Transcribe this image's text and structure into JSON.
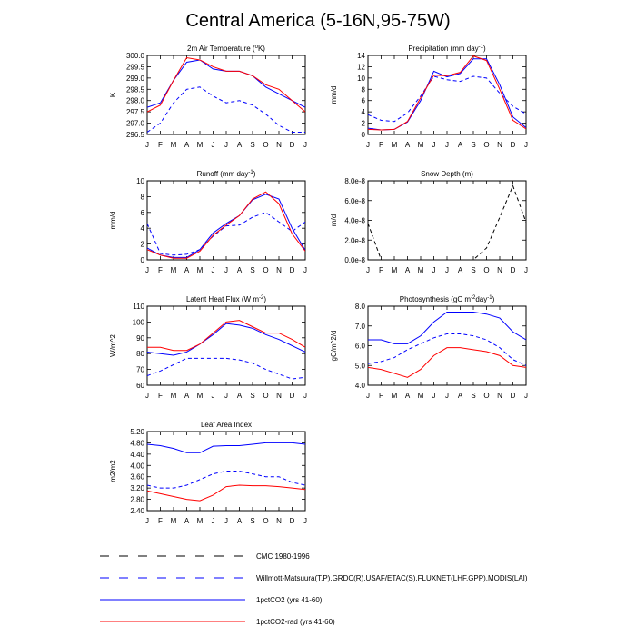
{
  "page_title": "Central America (5-16N,95-75W)",
  "months": [
    "J",
    "F",
    "M",
    "A",
    "M",
    "J",
    "J",
    "A",
    "S",
    "O",
    "N",
    "D",
    "J"
  ],
  "legend": [
    {
      "label": "CMC 1980-1996",
      "color": "#000000",
      "dash": true
    },
    {
      "label": "Willmott-Matsuura(T,P),GRDC(R),USAF/ETAC(S),FLUXNET(LHF,GPP),MODIS(LAI)",
      "color": "#0000ff",
      "dash": true
    },
    {
      "label": "1pctCO2 (yrs 41-60)",
      "color": "#0000ff",
      "dash": false
    },
    {
      "label": "1pctCO2-rad (yrs 41-60)",
      "color": "#ff0000",
      "dash": false
    }
  ],
  "chart_data": [
    {
      "type": "line",
      "title": "2m Air Temperature (",
      "title_sup": "o",
      "title_post": "K)",
      "ylabel": "K",
      "ylim": [
        296.5,
        300.0
      ],
      "yticks": [
        "296.5",
        "297.0",
        "297.5",
        "298.0",
        "298.5",
        "299.0",
        "299.5",
        "300.0"
      ],
      "series": [
        {
          "name": "Willmott-Matsuura(T,P),GRDC(R),USAF/ETAC(S),FLUXNET(LHF,GPP),MODIS(LAI)",
          "color": "#0000ff",
          "dash": true,
          "values": [
            296.6,
            297.0,
            297.9,
            298.5,
            298.6,
            298.2,
            297.9,
            298.0,
            297.8,
            297.4,
            296.9,
            296.6,
            296.6
          ]
        },
        {
          "name": "1pctCO2 (yrs 41-60)",
          "color": "#0000ff",
          "dash": false,
          "values": [
            297.7,
            297.9,
            298.9,
            299.7,
            299.8,
            299.4,
            299.3,
            299.3,
            299.1,
            298.6,
            298.3,
            298.0,
            297.7
          ]
        },
        {
          "name": "1pctCO2-rad (yrs 41-60)",
          "color": "#ff0000",
          "dash": false,
          "values": [
            297.5,
            297.8,
            298.9,
            299.9,
            299.8,
            299.5,
            299.3,
            299.3,
            299.1,
            298.7,
            298.5,
            298.0,
            297.5
          ]
        }
      ]
    },
    {
      "type": "line",
      "title": "Precipitation (mm day",
      "title_sup": "-1",
      "title_post": ")",
      "ylabel": "mm/d",
      "ylim": [
        0,
        14
      ],
      "yticks": [
        "0",
        "2",
        "4",
        "6",
        "8",
        "10",
        "12",
        "14"
      ],
      "series": [
        {
          "name": "Willmott-Matsuura(T,P),GRDC(R),USAF/ETAC(S),FLUXNET(LHF,GPP),MODIS(LAI)",
          "color": "#0000ff",
          "dash": true,
          "values": [
            3.5,
            2.5,
            2.3,
            3.8,
            6.8,
            10.3,
            9.7,
            9.4,
            10.3,
            10.0,
            7.3,
            5.0,
            3.6
          ]
        },
        {
          "name": "1pctCO2 (yrs 41-60)",
          "color": "#0000ff",
          "dash": false,
          "values": [
            1.1,
            0.8,
            0.9,
            2.2,
            6.0,
            11.2,
            10.2,
            10.8,
            13.4,
            13.4,
            8.8,
            3.1,
            1.2
          ]
        },
        {
          "name": "1pctCO2-rad (yrs 41-60)",
          "color": "#ff0000",
          "dash": false,
          "values": [
            0.9,
            0.8,
            0.9,
            2.3,
            6.5,
            10.5,
            10.4,
            11.0,
            13.9,
            13.1,
            8.0,
            2.5,
            1.0
          ]
        }
      ]
    },
    {
      "type": "line",
      "title": "Runoff (mm day",
      "title_sup": "-1",
      "title_post": ")",
      "ylabel": "mm/d",
      "ylim": [
        0,
        10
      ],
      "yticks": [
        "0",
        "2",
        "4",
        "6",
        "8",
        "10"
      ],
      "series": [
        {
          "name": "Willmott-Matsuura(T,P),GRDC(R),USAF/ETAC(S),FLUXNET(LHF,GPP),MODIS(LAI)",
          "color": "#0000ff",
          "dash": true,
          "values": [
            4.6,
            0.8,
            0.6,
            0.7,
            1.3,
            3.0,
            4.3,
            4.4,
            5.4,
            6.0,
            4.8,
            3.6,
            4.8
          ]
        },
        {
          "name": "1pctCO2 (yrs 41-60)",
          "color": "#0000ff",
          "dash": false,
          "values": [
            1.5,
            0.6,
            0.3,
            0.3,
            1.3,
            3.4,
            4.6,
            5.6,
            7.6,
            8.3,
            7.7,
            4.0,
            1.2
          ]
        },
        {
          "name": "1pctCO2-rad (yrs 41-60)",
          "color": "#ff0000",
          "dash": false,
          "values": [
            1.3,
            0.6,
            0.2,
            0.2,
            1.1,
            3.1,
            4.4,
            5.6,
            7.7,
            8.6,
            7.1,
            3.3,
            1.1
          ]
        }
      ]
    },
    {
      "type": "line",
      "title": "Snow Depth (m)",
      "title_sup": "",
      "title_post": "",
      "ylabel": "m/d",
      "ylim": [
        0,
        8e-08
      ],
      "ytick_values": [
        0,
        2e-08,
        4e-08,
        6e-08,
        8e-08
      ],
      "yticks": [
        "0.0e-8",
        "2.0e-8",
        "4.0e-8",
        "6.0e-8",
        "8.0e-8"
      ],
      "series": [
        {
          "name": "CMC 1980-1996",
          "color": "#000000",
          "dash": true,
          "values": [
            3.7e-08,
            0,
            0,
            0,
            0,
            0,
            0,
            0,
            0,
            1.2e-08,
            4.3e-08,
            7.5e-08,
            3.8e-08
          ]
        }
      ]
    },
    {
      "type": "line",
      "title": "Latent Heat Flux (W m",
      "title_sup": "-2",
      "title_post": ")",
      "ylabel": "W/m^2",
      "ylim": [
        60,
        110
      ],
      "yticks": [
        "60",
        "70",
        "80",
        "90",
        "100",
        "110"
      ],
      "series": [
        {
          "name": "Willmott-Matsuura(T,P),GRDC(R),USAF/ETAC(S),FLUXNET(LHF,GPP),MODIS(LAI)",
          "color": "#0000ff",
          "dash": true,
          "values": [
            66,
            69,
            73,
            77,
            77,
            77,
            77,
            76,
            74,
            70,
            67,
            64,
            65
          ]
        },
        {
          "name": "1pctCO2 (yrs 41-60)",
          "color": "#0000ff",
          "dash": false,
          "values": [
            81,
            80,
            79,
            81,
            86,
            92,
            99,
            98,
            96,
            92,
            89,
            85,
            81
          ]
        },
        {
          "name": "1pctCO2-rad (yrs 41-60)",
          "color": "#ff0000",
          "dash": false,
          "values": [
            84,
            84,
            82,
            82,
            86,
            93,
            100,
            101,
            97,
            93,
            93,
            89,
            84
          ]
        }
      ]
    },
    {
      "type": "line",
      "title": "Photosynthesis (gC m",
      "title_sup": "-2",
      "title_mid": "day",
      "title_sup2": "-1",
      "title_post": ")",
      "ylabel": "gC/m^2/d",
      "ylim": [
        4.0,
        8.0
      ],
      "yticks": [
        "4.0",
        "5.0",
        "6.0",
        "7.0",
        "8.0"
      ],
      "series": [
        {
          "name": "Willmott-Matsuura(T,P),GRDC(R),USAF/ETAC(S),FLUXNET(LHF,GPP),MODIS(LAI)",
          "color": "#0000ff",
          "dash": true,
          "values": [
            5.1,
            5.2,
            5.4,
            5.8,
            6.1,
            6.4,
            6.6,
            6.6,
            6.5,
            6.3,
            5.9,
            5.3,
            5.0
          ]
        },
        {
          "name": "1pctCO2 (yrs 41-60)",
          "color": "#0000ff",
          "dash": false,
          "values": [
            6.3,
            6.3,
            6.1,
            6.1,
            6.5,
            7.2,
            7.7,
            7.7,
            7.7,
            7.6,
            7.4,
            6.7,
            6.3
          ]
        },
        {
          "name": "1pctCO2-rad (yrs 41-60)",
          "color": "#ff0000",
          "dash": false,
          "values": [
            4.9,
            4.8,
            4.6,
            4.4,
            4.8,
            5.5,
            5.9,
            5.9,
            5.8,
            5.7,
            5.5,
            5.0,
            4.9
          ]
        }
      ]
    },
    {
      "type": "line",
      "title": "Leaf Area Index",
      "title_sup": "",
      "title_post": "",
      "ylabel": "m2/m2",
      "ylim": [
        2.4,
        5.2
      ],
      "yticks": [
        "2.40",
        "2.80",
        "3.20",
        "3.60",
        "4.00",
        "4.40",
        "4.80",
        "5.20"
      ],
      "series": [
        {
          "name": "Willmott-Matsuura(T,P),GRDC(R),USAF/ETAC(S),FLUXNET(LHF,GPP),MODIS(LAI)",
          "color": "#0000ff",
          "dash": true,
          "values": [
            3.3,
            3.2,
            3.2,
            3.3,
            3.5,
            3.7,
            3.8,
            3.8,
            3.7,
            3.6,
            3.6,
            3.4,
            3.3
          ]
        },
        {
          "name": "1pctCO2 (yrs 41-60)",
          "color": "#0000ff",
          "dash": false,
          "values": [
            4.75,
            4.7,
            4.6,
            4.45,
            4.45,
            4.68,
            4.7,
            4.7,
            4.75,
            4.8,
            4.8,
            4.8,
            4.75
          ]
        },
        {
          "name": "1pctCO2-rad (yrs 41-60)",
          "color": "#ff0000",
          "dash": false,
          "values": [
            3.1,
            3.0,
            2.9,
            2.8,
            2.75,
            2.95,
            3.25,
            3.3,
            3.28,
            3.28,
            3.25,
            3.2,
            3.15
          ]
        }
      ]
    }
  ]
}
